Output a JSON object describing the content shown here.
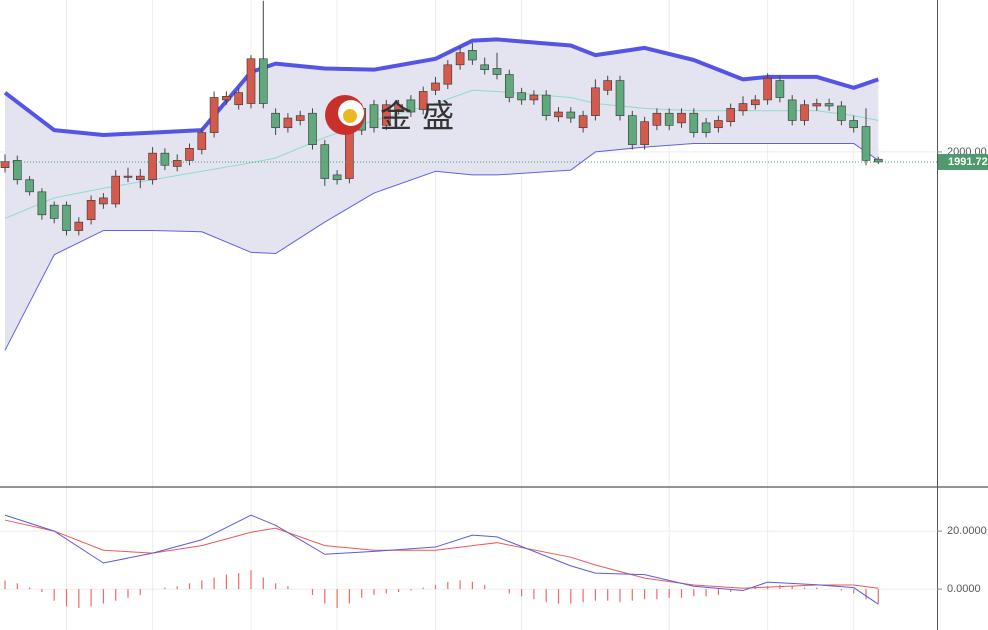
{
  "logo": {
    "text": "金 盛"
  },
  "chart_data": [
    {
      "type": "candlestick",
      "open": [
        1987,
        1993,
        1977,
        1967,
        1956,
        1956,
        1935,
        1944,
        1957,
        1957,
        1979,
        1977,
        1977,
        1999,
        1988,
        1993,
        2002,
        2016,
        2043,
        2039,
        2040,
        2077,
        2032,
        2020,
        2026,
        2032,
        2006,
        1981,
        1978,
        2036,
        2039,
        2022,
        2035,
        2043,
        2035,
        2051,
        2056,
        2072,
        2084,
        2072,
        2069,
        2064,
        2049,
        2043,
        2047,
        2029,
        2033,
        2020,
        2030,
        2051,
        2059,
        2030,
        2006,
        2022,
        2032,
        2024,
        2032,
        2024,
        2020,
        2025,
        2034,
        2039,
        2043,
        2059,
        2043,
        2026,
        2038,
        2040,
        2038,
        2026,
        2021,
        1994
      ],
      "high": [
        1998,
        1997,
        1980,
        1970,
        1959,
        1959,
        1946,
        1964,
        1966,
        1985,
        1987,
        1986,
        2004,
        2003,
        1998,
        2007,
        2020,
        2050,
        2050,
        2053,
        2080,
        2125,
        2036,
        2032,
        2034,
        2036,
        2010,
        1985,
        2036,
        2040,
        2043,
        2043,
        2043,
        2047,
        2054,
        2062,
        2076,
        2087,
        2090,
        2078,
        2082,
        2068,
        2053,
        2051,
        2051,
        2037,
        2037,
        2034,
        2060,
        2063,
        2063,
        2034,
        2029,
        2036,
        2036,
        2036,
        2036,
        2028,
        2030,
        2040,
        2046,
        2047,
        2065,
        2063,
        2047,
        2043,
        2044,
        2044,
        2042,
        2030,
        2036,
        1996
      ],
      "low": [
        1983,
        1973,
        1964,
        1944,
        1941,
        1931,
        1931,
        1940,
        1953,
        1954,
        1975,
        1970,
        1973,
        1985,
        1984,
        1989,
        1998,
        2012,
        2039,
        2035,
        2036,
        2036,
        2014,
        2016,
        2022,
        2002,
        1972,
        1973,
        1974,
        2014,
        2016,
        2018,
        2031,
        2029,
        2031,
        2047,
        2052,
        2068,
        2072,
        2064,
        2060,
        2041,
        2039,
        2039,
        2026,
        2025,
        2024,
        2016,
        2026,
        2047,
        2026,
        2002,
        2002,
        2018,
        2018,
        2020,
        2012,
        2012,
        2016,
        2021,
        2030,
        2035,
        2039,
        2041,
        2022,
        2022,
        2034,
        2034,
        2022,
        2016,
        1989,
        1990
      ],
      "close": [
        1992,
        1977,
        1967,
        1948,
        1945,
        1935,
        1942,
        1960,
        1962,
        1980,
        1980,
        1980,
        1999,
        1989,
        1993,
        2003,
        2016,
        2045,
        2046,
        2049,
        2077,
        2040,
        2020,
        2028,
        2030,
        2006,
        1978,
        1977,
        2030,
        2018,
        2020,
        2039,
        2039,
        2033,
        2050,
        2057,
        2072,
        2082,
        2076,
        2068,
        2064,
        2045,
        2043,
        2047,
        2030,
        2033,
        2028,
        2030,
        2053,
        2059,
        2030,
        2006,
        2025,
        2032,
        2022,
        2032,
        2016,
        2016,
        2026,
        2036,
        2040,
        2043,
        2061,
        2045,
        2026,
        2039,
        2040,
        2038,
        2026,
        2020,
        1993,
        1991.72
      ],
      "up_color": "#d65a4c",
      "down_color": "#5fa97c",
      "bands": {
        "x": [
          0,
          4,
          8,
          12,
          16,
          20,
          22,
          26,
          30,
          35,
          38,
          40,
          46,
          48,
          52,
          56,
          60,
          62,
          66,
          69,
          71
        ],
        "upper": [
          2049,
          2018,
          2014,
          2016,
          2018,
          2066,
          2073,
          2069,
          2068,
          2077,
          2092,
          2093,
          2088,
          2080,
          2086,
          2076,
          2060,
          2062,
          2062,
          2053,
          2060
        ],
        "middle": [
          1945,
          1962,
          1970,
          1977,
          1984,
          1991,
          1995,
          2012,
          2026,
          2040,
          2051,
          2050,
          2045,
          2040,
          2036,
          2034,
          2034,
          2034,
          2034,
          2030,
          2026
        ],
        "lower": [
          1836,
          1915,
          1935,
          1935,
          1934,
          1917,
          1916,
          1942,
          1966,
          1984,
          1981,
          1981,
          1985,
          2000,
          2004,
          2007,
          2007,
          2007,
          2007,
          2007,
          1993
        ],
        "upper_color": "#5454e6",
        "middle_color": "#8fdcc4",
        "lower_color": "#6262e0",
        "fill": "#e4e4f1"
      },
      "ylim": [
        1723,
        2125.6
      ],
      "yticks": [
        {
          "value": 2000,
          "label": "2000.00"
        }
      ],
      "last_price": 1991.72,
      "last_color": "#4e9a6c"
    },
    {
      "type": "macd",
      "x": [
        0,
        4,
        8,
        12,
        16,
        20,
        22,
        26,
        30,
        35,
        38,
        40,
        46,
        48,
        52,
        56,
        60,
        62,
        66,
        69,
        71
      ],
      "dif": [
        25.5,
        20,
        9,
        12.4,
        17,
        25.5,
        22,
        12,
        13,
        14.5,
        18.6,
        18,
        8,
        5.5,
        5,
        1,
        -0.5,
        2.4,
        1.5,
        0.5,
        -5.2
      ],
      "dea": [
        23.8,
        20,
        13.4,
        12.4,
        15,
        19.6,
        21,
        15,
        13.4,
        13.4,
        15,
        16,
        11,
        8.3,
        3.8,
        1.4,
        0.3,
        0.7,
        1.4,
        1.4,
        0.3
      ],
      "histogram": [
        3,
        2,
        0.5,
        -1,
        -4,
        -6,
        -6.5,
        -6,
        -5,
        -4,
        -3,
        -2,
        0,
        0.5,
        1,
        2,
        3,
        4,
        5,
        5.5,
        6.5,
        4,
        2,
        1,
        0,
        -2,
        -5,
        -6.5,
        -5,
        -3,
        -2,
        -1.5,
        -1,
        -0.5,
        0.5,
        1.5,
        2.5,
        3,
        2.5,
        1.5,
        0,
        -1.5,
        -2.5,
        -3.5,
        -4.5,
        -5,
        -5,
        -4.5,
        -4,
        -4,
        -4.5,
        -4,
        -3.5,
        -3.5,
        -3,
        -3,
        -2.5,
        -2.5,
        -2,
        -1,
        0,
        0.5,
        1,
        1.5,
        1,
        0.5,
        0.5,
        0,
        -0.5,
        -1.5,
        -3.5,
        -5
      ],
      "dif_color": "#5b5bdc",
      "dea_color": "#e85a5a",
      "hist_color": "#f06868",
      "ylim": [
        -14.1,
        35.2
      ],
      "yticks": [
        {
          "value": 20,
          "label": "20.0000"
        },
        {
          "value": 0,
          "label": "0.0000"
        }
      ]
    }
  ]
}
